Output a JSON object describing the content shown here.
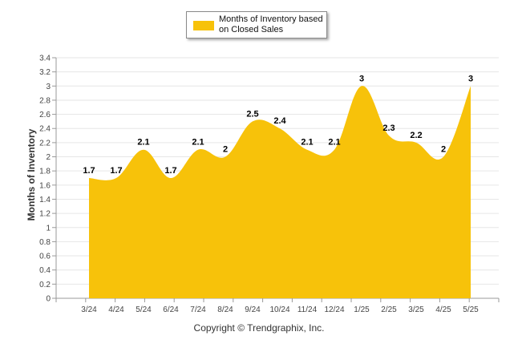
{
  "chart_data": {
    "type": "area",
    "categories": [
      "3/24",
      "4/24",
      "5/24",
      "6/24",
      "7/24",
      "8/24",
      "9/24",
      "10/24",
      "11/24",
      "12/24",
      "1/25",
      "2/25",
      "3/25",
      "4/25",
      "5/25"
    ],
    "series": [
      {
        "name": "Months of Inventory based on Closed Sales",
        "values": [
          1.7,
          1.7,
          2.1,
          1.7,
          2.1,
          2.0,
          2.5,
          2.4,
          2.1,
          2.1,
          3.0,
          2.3,
          2.2,
          2.0,
          3.0
        ],
        "labels": [
          "1.7",
          "1.7",
          "2.1",
          "1.7",
          "2.1",
          "2",
          "2.5",
          "2.4",
          "2.1",
          "2.1",
          "3",
          "2.3",
          "2.2",
          "2",
          "3"
        ],
        "color": "#F7C20A"
      }
    ],
    "ylabel": "Months of Inventory",
    "xlabel": "",
    "ylim": [
      0,
      3.4
    ],
    "yticks": [
      "0",
      "0.2",
      "0.4",
      "0.6",
      "0.8",
      "1",
      "1.2",
      "1.4",
      "1.6",
      "1.8",
      "2",
      "2.2",
      "2.4",
      "2.6",
      "2.8",
      "3",
      "3.2",
      "3.4"
    ],
    "grid": true,
    "legend_position": "top-center"
  },
  "footer": "Copyright © Trendgraphix, Inc."
}
